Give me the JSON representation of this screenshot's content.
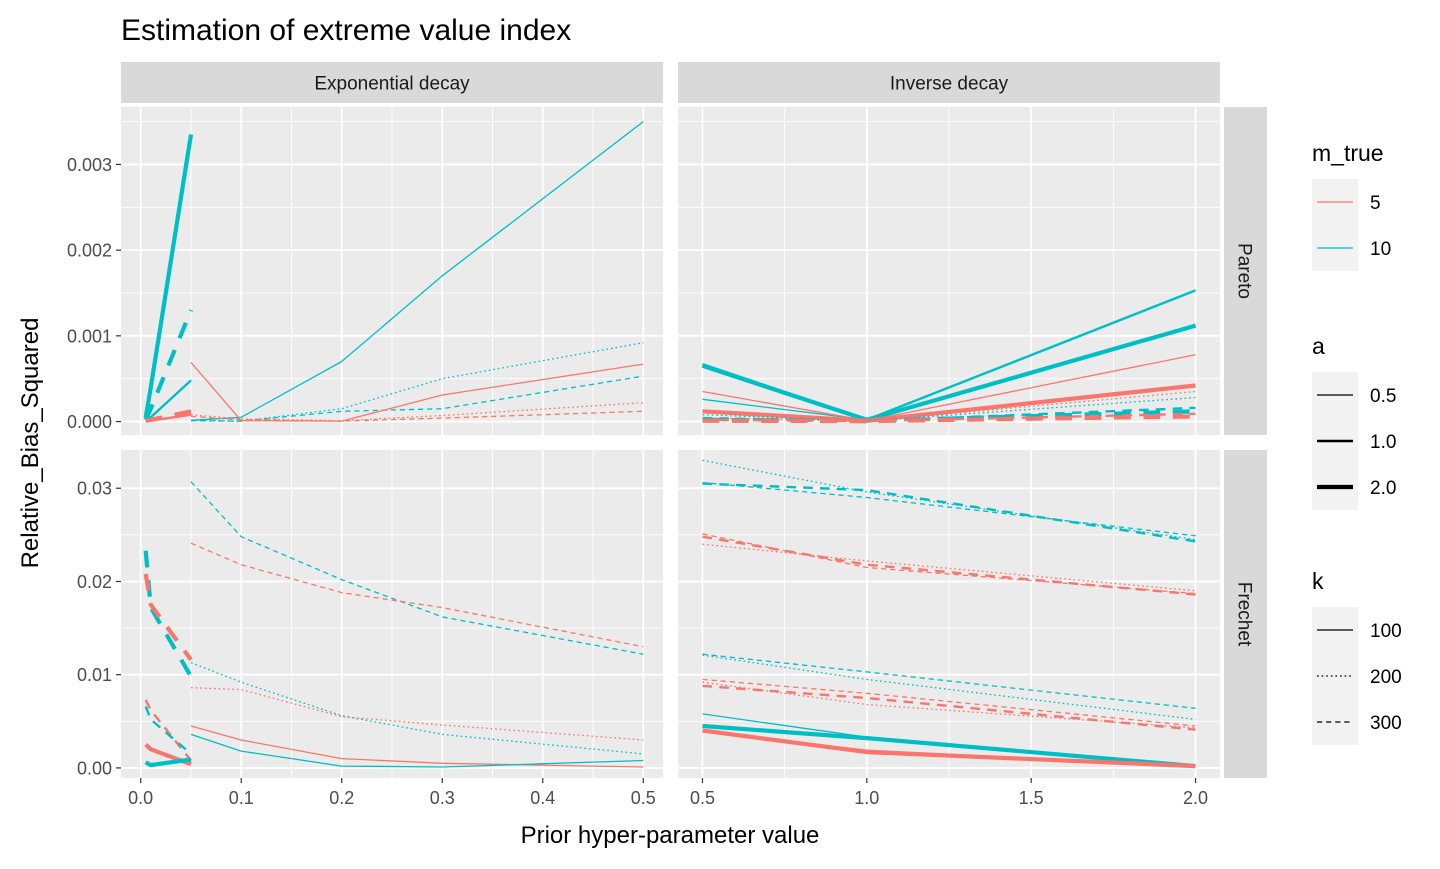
{
  "chart_data": {
    "type": "line",
    "title": "Estimation of extreme value index",
    "xlabel": "Prior hyper-parameter value",
    "ylabel": "Relative_Bias_Squared",
    "col_facets": [
      "Exponential decay",
      "Inverse decay"
    ],
    "row_facets": [
      "Pareto",
      "Frechet"
    ],
    "x_ticks": {
      "Exponential decay": [
        0.0,
        0.1,
        0.2,
        0.3,
        0.4,
        0.5
      ],
      "Inverse decay": [
        0.5,
        1.0,
        1.5,
        2.0
      ]
    },
    "x_tick_labels": {
      "Exponential decay": [
        "0.0",
        "0.1",
        "0.2",
        "0.3",
        "0.4",
        "0.5"
      ],
      "Inverse decay": [
        "0.5",
        "1.0",
        "1.5",
        "2.0"
      ]
    },
    "xlim": {
      "Exponential decay": [
        -0.0196,
        0.5196
      ],
      "Inverse decay": [
        0.4256,
        2.0744
      ]
    },
    "y_ticks": {
      "Pareto": [
        0.0,
        0.001,
        0.002,
        0.003
      ],
      "Frechet": [
        0.0,
        0.01,
        0.02,
        0.03
      ]
    },
    "y_tick_labels": {
      "Pareto": [
        "0.000",
        "0.001",
        "0.002",
        "0.003"
      ],
      "Frechet": [
        "0.00",
        "0.01",
        "0.02",
        "0.03"
      ]
    },
    "ylim": {
      "Pareto": [
        -0.000157,
        0.00367
      ],
      "Frechet": [
        -0.00108,
        0.0341
      ]
    },
    "grid": true,
    "legend_placement": "right",
    "legends": [
      {
        "title": "m_true",
        "aesthetic": "colour",
        "entries": [
          {
            "label": "5",
            "color": "#F8766D"
          },
          {
            "label": "10",
            "color": "#00BFC4"
          }
        ]
      },
      {
        "title": "a",
        "aesthetic": "linewidth",
        "entries": [
          {
            "label": "0.5",
            "width": 1.3
          },
          {
            "label": "1.0",
            "width": 2.4
          },
          {
            "label": "2.0",
            "width": 4.2
          }
        ]
      },
      {
        "title": "k",
        "aesthetic": "linetype",
        "entries": [
          {
            "label": "100",
            "dash": "solid"
          },
          {
            "label": "200",
            "dash": "dotted"
          },
          {
            "label": "300",
            "dash": "dashed"
          }
        ]
      }
    ],
    "panels": [
      {
        "row": "Pareto",
        "col": "Exponential decay",
        "series": [
          {
            "m_true": "10",
            "a": "0.5",
            "k": "100",
            "x": [
              0.05,
              0.1,
              0.2,
              0.3,
              0.5
            ],
            "y": [
              1.5e-05,
              5e-05,
              0.0007,
              0.0017,
              0.0035
            ]
          },
          {
            "m_true": "10",
            "a": "0.5",
            "k": "200",
            "x": [
              0.05,
              0.1,
              0.2,
              0.3,
              0.5
            ],
            "y": [
              1.5e-05,
              5e-06,
              0.00015,
              0.0005,
              0.00092
            ]
          },
          {
            "m_true": "10",
            "a": "0.5",
            "k": "300",
            "x": [
              0.05,
              0.1,
              0.2,
              0.3,
              0.5
            ],
            "y": [
              1e-05,
              5e-06,
              0.00012,
              0.00015,
              0.00053
            ]
          },
          {
            "m_true": "5",
            "a": "0.5",
            "k": "100",
            "x": [
              0.05,
              0.1,
              0.2,
              0.3,
              0.5
            ],
            "y": [
              0.00069,
              1e-05,
              5e-06,
              0.00031,
              0.00067
            ]
          },
          {
            "m_true": "5",
            "a": "0.5",
            "k": "200",
            "x": [
              0.05,
              0.1,
              0.2,
              0.3,
              0.5
            ],
            "y": [
              8e-05,
              3e-05,
              1e-05,
              7e-05,
              0.00022
            ]
          },
          {
            "m_true": "5",
            "a": "0.5",
            "k": "300",
            "x": [
              0.05,
              0.1,
              0.2,
              0.3,
              0.5
            ],
            "y": [
              6e-05,
              2e-05,
              5e-06,
              4e-05,
              0.00012
            ]
          },
          {
            "m_true": "10",
            "a": "2.0",
            "k": "100",
            "x": [
              0.005,
              0.01,
              0.05
            ],
            "y": [
              5e-05,
              0.0004,
              0.00335
            ]
          },
          {
            "m_true": "10",
            "a": "2.0",
            "k": "300",
            "x": [
              0.005,
              0.01,
              0.05
            ],
            "y": [
              2e-05,
              0.00015,
              0.0013
            ]
          },
          {
            "m_true": "10",
            "a": "1.0",
            "k": "100",
            "x": [
              0.005,
              0.01,
              0.05
            ],
            "y": [
              1e-05,
              5e-05,
              0.00048
            ]
          },
          {
            "m_true": "5",
            "a": "2.0",
            "k": "300",
            "x": [
              0.005,
              0.01,
              0.05
            ],
            "y": [
              1e-05,
              2e-05,
              0.00012
            ]
          },
          {
            "m_true": "5",
            "a": "1.0",
            "k": "100",
            "x": [
              0.005,
              0.01,
              0.05
            ],
            "y": [
              5e-06,
              1e-05,
              8e-05
            ]
          }
        ]
      },
      {
        "row": "Pareto",
        "col": "Inverse decay",
        "series": [
          {
            "m_true": "10",
            "a": "1.0",
            "k": "100",
            "x": [
              0.5,
              1.0,
              2.0
            ],
            "y": [
              0.00067,
              2e-05,
              0.00153
            ]
          },
          {
            "m_true": "10",
            "a": "2.0",
            "k": "100",
            "x": [
              0.5,
              1.0,
              2.0
            ],
            "y": [
              0.00065,
              2e-05,
              0.00112
            ]
          },
          {
            "m_true": "10",
            "a": "0.5",
            "k": "100",
            "x": [
              0.5,
              1.0,
              2.0
            ],
            "y": [
              0.00026,
              2e-05,
              0.00112
            ]
          },
          {
            "m_true": "5",
            "a": "0.5",
            "k": "100",
            "x": [
              0.5,
              1.0,
              2.0
            ],
            "y": [
              0.00035,
              1e-05,
              0.00078
            ]
          },
          {
            "m_true": "5",
            "a": "2.0",
            "k": "100",
            "x": [
              0.5,
              1.0,
              2.0
            ],
            "y": [
              0.00012,
              1e-05,
              0.00042
            ]
          },
          {
            "m_true": "5",
            "a": "0.5",
            "k": "200",
            "x": [
              0.5,
              1.0,
              2.0
            ],
            "y": [
              4e-05,
              5e-06,
              0.00035
            ]
          },
          {
            "m_true": "10",
            "a": "0.5",
            "k": "200",
            "x": [
              0.5,
              1.0,
              2.0
            ],
            "y": [
              8e-05,
              5e-06,
              0.00028
            ]
          },
          {
            "m_true": "10",
            "a": "1.0",
            "k": "300",
            "x": [
              0.5,
              1.0,
              2.0
            ],
            "y": [
              4e-05,
              5e-06,
              0.00016
            ]
          },
          {
            "m_true": "10",
            "a": "2.0",
            "k": "300",
            "x": [
              0.5,
              1.0,
              2.0
            ],
            "y": [
              2e-05,
              5e-06,
              0.00012
            ]
          },
          {
            "m_true": "5",
            "a": "1.0",
            "k": "300",
            "x": [
              0.5,
              1.0,
              2.0
            ],
            "y": [
              2e-05,
              5e-06,
              9e-05
            ]
          },
          {
            "m_true": "5",
            "a": "2.0",
            "k": "300",
            "x": [
              0.5,
              1.0,
              2.0
            ],
            "y": [
              1e-05,
              5e-06,
              6e-05
            ]
          }
        ]
      },
      {
        "row": "Frechet",
        "col": "Exponential decay",
        "series": [
          {
            "m_true": "10",
            "a": "0.5",
            "k": "300",
            "x": [
              0.05,
              0.1,
              0.2,
              0.3,
              0.5
            ],
            "y": [
              0.0307,
              0.0248,
              0.0202,
              0.0162,
              0.0122
            ]
          },
          {
            "m_true": "5",
            "a": "0.5",
            "k": "300",
            "x": [
              0.05,
              0.1,
              0.2,
              0.3,
              0.5
            ],
            "y": [
              0.0241,
              0.0218,
              0.0188,
              0.0172,
              0.013
            ]
          },
          {
            "m_true": "10",
            "a": "0.5",
            "k": "200",
            "x": [
              0.05,
              0.1,
              0.2,
              0.3,
              0.5
            ],
            "y": [
              0.0113,
              0.0092,
              0.0056,
              0.0036,
              0.0015
            ]
          },
          {
            "m_true": "5",
            "a": "0.5",
            "k": "200",
            "x": [
              0.05,
              0.1,
              0.2,
              0.3,
              0.5
            ],
            "y": [
              0.0086,
              0.0084,
              0.0055,
              0.0046,
              0.003
            ]
          },
          {
            "m_true": "5",
            "a": "0.5",
            "k": "100",
            "x": [
              0.05,
              0.1,
              0.2,
              0.3,
              0.5
            ],
            "y": [
              0.0045,
              0.003,
              0.001,
              0.0005,
              0.0001
            ]
          },
          {
            "m_true": "10",
            "a": "0.5",
            "k": "100",
            "x": [
              0.05,
              0.1,
              0.2,
              0.3,
              0.5
            ],
            "y": [
              0.0036,
              0.0018,
              0.0002,
              0.0001,
              0.0008
            ]
          },
          {
            "m_true": "10",
            "a": "2.0",
            "k": "300",
            "x": [
              0.005,
              0.01,
              0.05
            ],
            "y": [
              0.0233,
              0.0172,
              0.0098
            ]
          },
          {
            "m_true": "5",
            "a": "2.0",
            "k": "300",
            "x": [
              0.005,
              0.01,
              0.05
            ],
            "y": [
              0.0208,
              0.0175,
              0.0116
            ]
          },
          {
            "m_true": "5",
            "a": "1.0",
            "k": "300",
            "x": [
              0.005,
              0.01,
              0.05
            ],
            "y": [
              0.0073,
              0.0062,
              0.0008
            ]
          },
          {
            "m_true": "10",
            "a": "1.0",
            "k": "300",
            "x": [
              0.005,
              0.01,
              0.05
            ],
            "y": [
              0.0066,
              0.0052,
              0.0015
            ]
          },
          {
            "m_true": "5",
            "a": "2.0",
            "k": "100",
            "x": [
              0.005,
              0.01,
              0.05
            ],
            "y": [
              0.0025,
              0.002,
              0.0004
            ]
          },
          {
            "m_true": "10",
            "a": "2.0",
            "k": "100",
            "x": [
              0.005,
              0.01,
              0.05
            ],
            "y": [
              0.0006,
              0.0003,
              0.0009
            ]
          }
        ]
      },
      {
        "row": "Frechet",
        "col": "Inverse decay",
        "series": [
          {
            "m_true": "10",
            "a": "0.5",
            "k": "200",
            "x": [
              0.5,
              1.0,
              2.0
            ],
            "y": [
              0.033,
              0.0296,
              0.0245
            ]
          },
          {
            "m_true": "10",
            "a": "0.5",
            "k": "300",
            "x": [
              0.5,
              1.0,
              2.0
            ],
            "y": [
              0.0306,
              0.029,
              0.0249
            ]
          },
          {
            "m_true": "10",
            "a": "1.0",
            "k": "300",
            "x": [
              0.5,
              1.0,
              2.0
            ],
            "y": [
              0.0305,
              0.0298,
              0.0243
            ]
          },
          {
            "m_true": "5",
            "a": "0.5",
            "k": "300",
            "x": [
              0.5,
              1.0,
              2.0
            ],
            "y": [
              0.0251,
              0.0215,
              0.0187
            ]
          },
          {
            "m_true": "5",
            "a": "0.5",
            "k": "200",
            "x": [
              0.5,
              1.0,
              2.0
            ],
            "y": [
              0.024,
              0.0222,
              0.019
            ]
          },
          {
            "m_true": "5",
            "a": "1.0",
            "k": "300",
            "x": [
              0.5,
              1.0,
              2.0
            ],
            "y": [
              0.0248,
              0.0218,
              0.0186
            ]
          },
          {
            "m_true": "10",
            "a": "0.5",
            "k": "300",
            "x": [
              0.5,
              1.0,
              2.0
            ],
            "y": [
              0.0122,
              0.0103,
              0.0064
            ]
          },
          {
            "m_true": "10",
            "a": "0.5",
            "k": "200",
            "x": [
              0.5,
              1.0,
              2.0
            ],
            "y": [
              0.0121,
              0.0095,
              0.0052
            ]
          },
          {
            "m_true": "5",
            "a": "0.5",
            "k": "300",
            "x": [
              0.5,
              1.0,
              2.0
            ],
            "y": [
              0.0095,
              0.008,
              0.0045
            ]
          },
          {
            "m_true": "5",
            "a": "0.5",
            "k": "200",
            "x": [
              0.5,
              1.0,
              2.0
            ],
            "y": [
              0.0092,
              0.0068,
              0.0043
            ]
          },
          {
            "m_true": "5",
            "a": "1.0",
            "k": "300",
            "x": [
              0.5,
              1.0,
              2.0
            ],
            "y": [
              0.0088,
              0.0075,
              0.0041
            ]
          },
          {
            "m_true": "10",
            "a": "0.5",
            "k": "100",
            "x": [
              0.5,
              1.0,
              2.0
            ],
            "y": [
              0.0058,
              0.0033,
              0.0003
            ]
          },
          {
            "m_true": "10",
            "a": "2.0",
            "k": "100",
            "x": [
              0.5,
              1.0,
              2.0
            ],
            "y": [
              0.0045,
              0.0032,
              0.0002
            ]
          },
          {
            "m_true": "5",
            "a": "2.0",
            "k": "100",
            "x": [
              0.5,
              1.0,
              2.0
            ],
            "y": [
              0.004,
              0.0017,
              0.0002
            ]
          },
          {
            "m_true": "5",
            "a": "0.5",
            "k": "100",
            "x": [
              0.5,
              1.0,
              2.0
            ],
            "y": [
              0.0039,
              0.0019,
              0.0002
            ]
          }
        ]
      }
    ]
  }
}
